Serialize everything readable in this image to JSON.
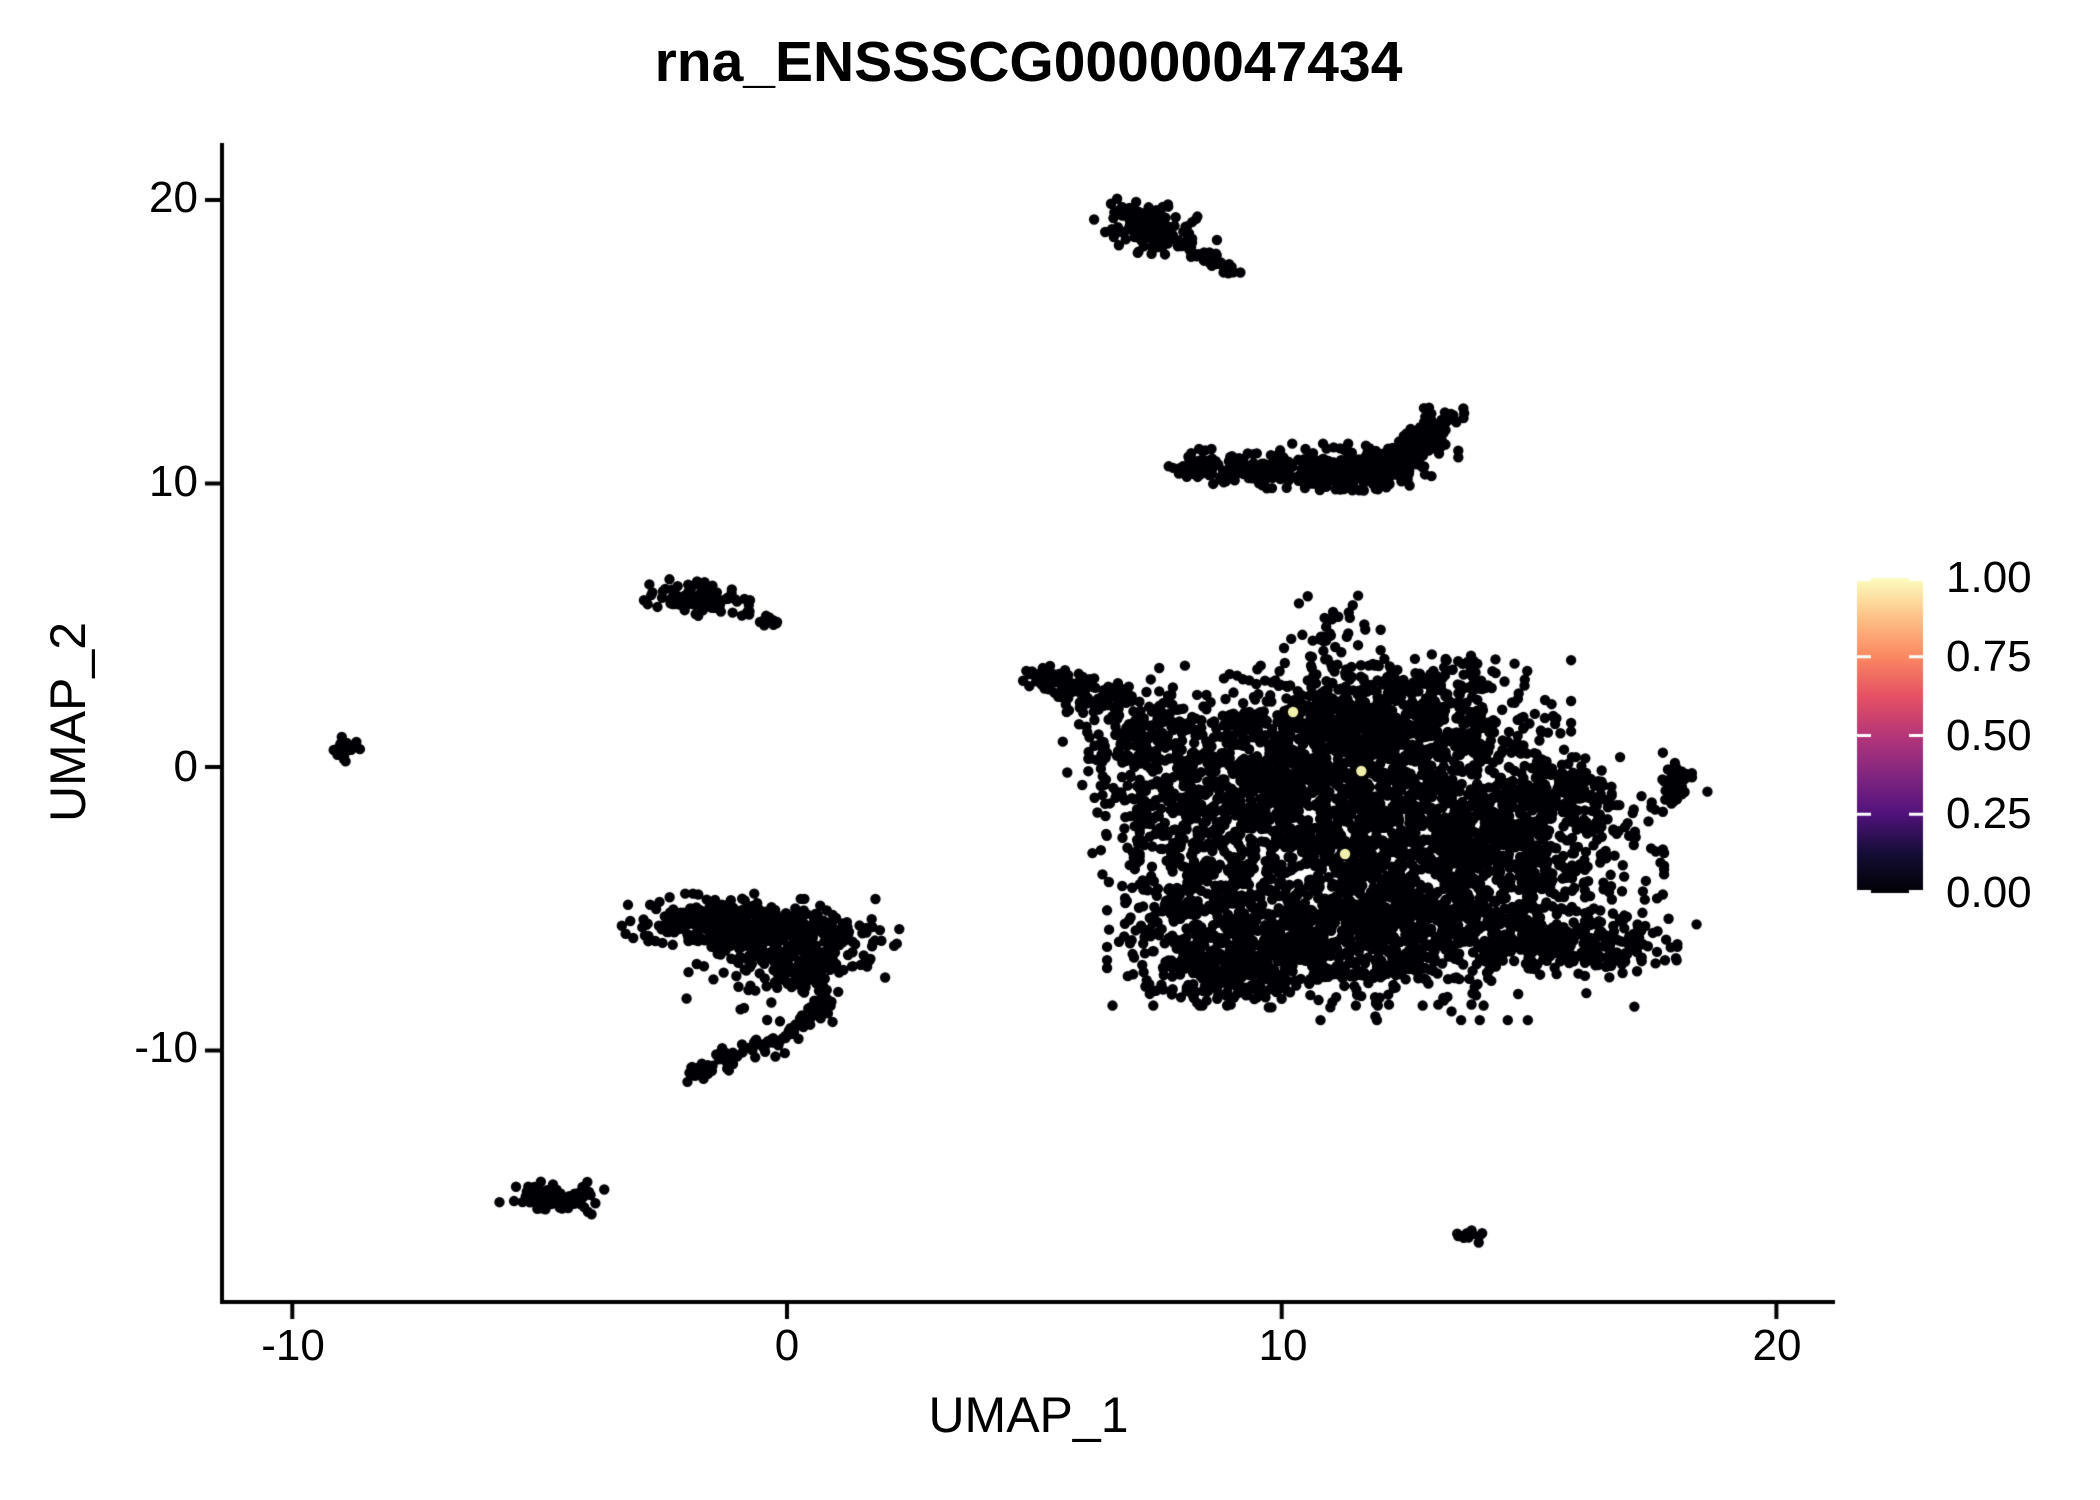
{
  "chart_data": {
    "type": "scatter",
    "title": "rna_ENSSSCG00000047434",
    "xlabel": "UMAP_1",
    "ylabel": "UMAP_2",
    "xlim": [
      -11.4,
      21.2
    ],
    "ylim": [
      -18.9,
      22.0
    ],
    "grid": false,
    "x_ticks": [
      {
        "value": -10,
        "label": "-10"
      },
      {
        "value": 0,
        "label": "0"
      },
      {
        "value": 10,
        "label": "10"
      },
      {
        "value": 20,
        "label": "20"
      }
    ],
    "y_ticks": [
      {
        "value": 20,
        "label": "20"
      },
      {
        "value": 10,
        "label": "10"
      },
      {
        "value": 0,
        "label": "0"
      },
      {
        "value": -10,
        "label": "-10"
      }
    ],
    "point_color": "#000004",
    "point_radius_px": 5.2,
    "legend": {
      "position": "right",
      "colormap_name": "magma",
      "colormap_stops": [
        [
          0.0,
          "#000004"
        ],
        [
          0.125,
          "#140e36"
        ],
        [
          0.25,
          "#51127c"
        ],
        [
          0.375,
          "#822681"
        ],
        [
          0.5,
          "#b63679"
        ],
        [
          0.625,
          "#e65164"
        ],
        [
          0.75,
          "#fb8861"
        ],
        [
          0.875,
          "#fec287"
        ],
        [
          1.0,
          "#fcfdbf"
        ]
      ],
      "ticks": [
        {
          "value": 1.0,
          "label": "1.00"
        },
        {
          "value": 0.75,
          "label": "0.75"
        },
        {
          "value": 0.5,
          "label": "0.50"
        },
        {
          "value": 0.25,
          "label": "0.25"
        },
        {
          "value": 0.0,
          "label": "0.00"
        }
      ]
    },
    "highlight_color": "#f0eeab",
    "highlight_points": [
      {
        "x": 10.23,
        "y": 1.94,
        "value_approx": 1.0
      },
      {
        "x": 11.61,
        "y": -0.14,
        "value_approx": 1.0
      },
      {
        "x": 11.28,
        "y": -3.07,
        "value_approx": 1.0
      }
    ],
    "clusters": [
      {
        "name": "top-blob-core",
        "type": "blob",
        "cx": 7.45,
        "cy": 18.95,
        "sx": 0.55,
        "sy": 0.38,
        "rot": -35,
        "n": 110
      },
      {
        "name": "top-blob-cap",
        "type": "blob",
        "cx": 7.15,
        "cy": 19.3,
        "sx": 0.3,
        "sy": 0.2,
        "rot": 0,
        "n": 30
      },
      {
        "name": "top-blob-tail",
        "type": "path",
        "points": [
          [
            7.95,
            18.45
          ],
          [
            8.5,
            17.95
          ],
          [
            8.95,
            17.5
          ]
        ],
        "thickness": 0.12,
        "n": 40
      },
      {
        "name": "crescent",
        "type": "path",
        "points": [
          [
            8.05,
            10.75
          ],
          [
            9.0,
            10.55
          ],
          [
            10.0,
            10.45
          ],
          [
            11.0,
            10.4
          ],
          [
            11.9,
            10.35
          ],
          [
            12.45,
            10.9
          ],
          [
            12.9,
            11.8
          ],
          [
            13.15,
            12.55
          ]
        ],
        "thickness": 0.28,
        "n": 430
      },
      {
        "name": "crescent-bulge",
        "type": "blob",
        "cx": 11.5,
        "cy": 10.6,
        "sx": 0.9,
        "sy": 0.35,
        "rot": 0,
        "n": 150
      },
      {
        "name": "left-small",
        "type": "blob",
        "cx": -1.9,
        "cy": 5.95,
        "sx": 0.5,
        "sy": 0.26,
        "rot": -8,
        "n": 90
      },
      {
        "name": "left-small-dot",
        "type": "blob",
        "cx": -0.75,
        "cy": 5.45,
        "sx": 0.07,
        "sy": 0.06,
        "rot": 0,
        "n": 4
      },
      {
        "name": "left-small-dash",
        "type": "path",
        "points": [
          [
            -0.55,
            5.25
          ],
          [
            -0.22,
            5.05
          ]
        ],
        "thickness": 0.07,
        "n": 10
      },
      {
        "name": "far-left-dot",
        "type": "blob",
        "cx": -8.95,
        "cy": 0.55,
        "sx": 0.22,
        "sy": 0.18,
        "rot": -30,
        "n": 22
      },
      {
        "name": "main-arm-tip",
        "type": "blob",
        "cx": 5.45,
        "cy": 3.05,
        "sx": 0.35,
        "sy": 0.18,
        "rot": -25,
        "n": 45
      },
      {
        "name": "main-arm",
        "type": "blob",
        "cx": 6.35,
        "cy": 2.45,
        "sx": 0.5,
        "sy": 0.35,
        "rot": -30,
        "n": 80
      },
      {
        "name": "main-left-shoulder",
        "type": "blob",
        "cx": 7.3,
        "cy": 1.1,
        "sx": 0.75,
        "sy": 0.95,
        "rot": 0,
        "n": 160
      },
      {
        "name": "main-left-band",
        "type": "blob",
        "cx": 8.3,
        "cy": -2.3,
        "sx": 0.85,
        "sy": 1.7,
        "rot": 0,
        "n": 280
      },
      {
        "name": "main-upper-mid",
        "type": "blob",
        "cx": 10.4,
        "cy": 0.7,
        "sx": 1.25,
        "sy": 1.25,
        "rot": 0,
        "n": 520
      },
      {
        "name": "main-upper-right",
        "type": "blob",
        "cx": 12.4,
        "cy": 1.4,
        "sx": 1.5,
        "sy": 1.05,
        "rot": 0,
        "n": 560
      },
      {
        "name": "main-top-bump",
        "type": "blob",
        "cx": 10.85,
        "cy": 4.55,
        "sx": 0.5,
        "sy": 0.65,
        "rot": 0,
        "n": 45
      },
      {
        "name": "main-top-bump2",
        "type": "blob",
        "cx": 13.2,
        "cy": 3.1,
        "sx": 0.8,
        "sy": 0.55,
        "rot": 0,
        "n": 70
      },
      {
        "name": "main-core",
        "type": "blob",
        "cx": 11.5,
        "cy": -2.1,
        "sx": 1.9,
        "sy": 1.6,
        "rot": 0,
        "n": 950
      },
      {
        "name": "main-right-lobe",
        "type": "blob",
        "cx": 14.6,
        "cy": -2.6,
        "sx": 1.35,
        "sy": 1.35,
        "rot": 0,
        "n": 480
      },
      {
        "name": "main-right-top",
        "type": "blob",
        "cx": 16.0,
        "cy": -0.8,
        "sx": 0.5,
        "sy": 0.5,
        "rot": 0,
        "n": 80
      },
      {
        "name": "main-bottom-band",
        "type": "blob",
        "cx": 11.3,
        "cy": -6.0,
        "sx": 2.1,
        "sy": 1.05,
        "rot": 0,
        "n": 950
      },
      {
        "name": "main-bottom-left",
        "type": "blob",
        "cx": 9.2,
        "cy": -7.1,
        "sx": 0.85,
        "sy": 0.6,
        "rot": 0,
        "n": 220
      },
      {
        "name": "main-bottom-right-arm",
        "type": "blob",
        "cx": 15.8,
        "cy": -6.1,
        "sx": 1.05,
        "sy": 0.5,
        "rot": -12,
        "n": 240
      },
      {
        "name": "main-left-wisp",
        "type": "blob",
        "cx": 6.95,
        "cy": -0.9,
        "sx": 0.4,
        "sy": 1.0,
        "rot": 0,
        "n": 70
      },
      {
        "name": "main-filler",
        "type": "blob",
        "cx": 12.9,
        "cy": -4.1,
        "sx": 2.1,
        "sy": 2.1,
        "rot": 0,
        "n": 420
      },
      {
        "name": "right-small",
        "type": "blob",
        "cx": 18.1,
        "cy": -0.55,
        "sx": 0.22,
        "sy": 0.3,
        "rot": 0,
        "n": 26
      },
      {
        "name": "right-small-dot",
        "type": "blob",
        "cx": 17.95,
        "cy": -1.15,
        "sx": 0.1,
        "sy": 0.1,
        "rot": 0,
        "n": 5
      },
      {
        "name": "comma-band-left",
        "type": "blob",
        "cx": -1.5,
        "cy": -5.5,
        "sx": 0.8,
        "sy": 0.45,
        "rot": 0,
        "n": 220
      },
      {
        "name": "comma-band-right",
        "type": "blob",
        "cx": 0.2,
        "cy": -5.8,
        "sx": 0.9,
        "sy": 0.5,
        "rot": 0,
        "n": 200
      },
      {
        "name": "comma-mid",
        "type": "blob",
        "cx": 0.0,
        "cy": -6.9,
        "sx": 0.9,
        "sy": 0.55,
        "rot": 0,
        "n": 90
      },
      {
        "name": "comma-clump",
        "type": "blob",
        "cx": 0.4,
        "cy": -7.1,
        "sx": 0.3,
        "sy": 0.35,
        "rot": 0,
        "n": 80
      },
      {
        "name": "comma-hook",
        "type": "path",
        "points": [
          [
            0.85,
            -7.9
          ],
          [
            0.6,
            -8.6
          ],
          [
            0.1,
            -9.3
          ],
          [
            -0.6,
            -9.9
          ],
          [
            -1.3,
            -10.4
          ],
          [
            -1.95,
            -10.85
          ]
        ],
        "thickness": 0.16,
        "n": 110
      },
      {
        "name": "comma-sparse",
        "type": "blob",
        "cx": -0.2,
        "cy": -8.2,
        "sx": 0.55,
        "sy": 0.55,
        "rot": 0,
        "n": 12
      },
      {
        "name": "bottom-small",
        "type": "blob",
        "cx": -4.6,
        "cy": -15.1,
        "sx": 0.5,
        "sy": 0.24,
        "rot": -10,
        "n": 70
      },
      {
        "name": "bottom-small-bulge",
        "type": "blob",
        "cx": -4.95,
        "cy": -15.35,
        "sx": 0.18,
        "sy": 0.14,
        "rot": 0,
        "n": 15
      },
      {
        "name": "bottom-right-tiny",
        "type": "blob",
        "cx": 13.75,
        "cy": -16.5,
        "sx": 0.18,
        "sy": 0.12,
        "rot": -20,
        "n": 14
      }
    ]
  }
}
